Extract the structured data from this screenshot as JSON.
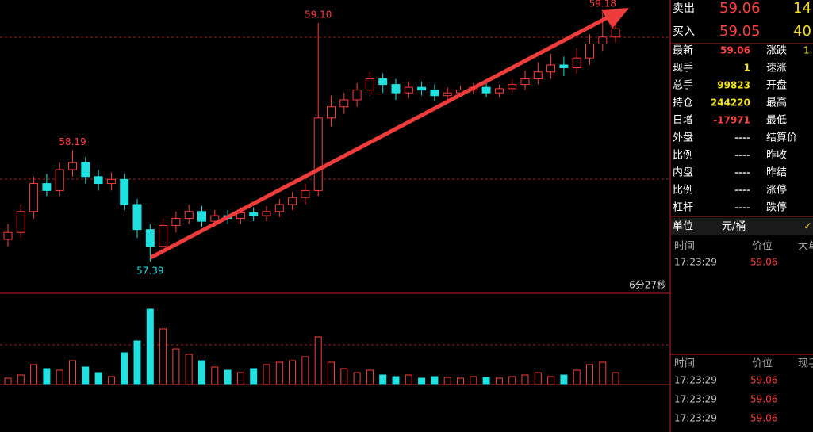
{
  "chart_data": {
    "type": "candlestick",
    "open": [
      57.55,
      57.6,
      57.75,
      57.95,
      57.9,
      58.05,
      58.1,
      58.0,
      57.95,
      57.98,
      57.8,
      57.62,
      57.5,
      57.65,
      57.7,
      57.75,
      57.68,
      57.72,
      57.7,
      57.74,
      57.72,
      57.75,
      57.8,
      57.85,
      57.9,
      58.42,
      58.5,
      58.55,
      58.62,
      58.7,
      58.66,
      58.6,
      58.64,
      58.62,
      58.58,
      58.6,
      58.62,
      58.64,
      58.6,
      58.63,
      58.66,
      58.7,
      58.75,
      58.8,
      58.78,
      58.85,
      58.95,
      59.0
    ],
    "high": [
      57.66,
      57.8,
      58.0,
      58.02,
      58.1,
      58.19,
      58.14,
      58.05,
      58.03,
      58.02,
      57.84,
      57.66,
      57.7,
      57.75,
      57.8,
      57.79,
      57.76,
      57.76,
      57.78,
      57.78,
      57.79,
      57.84,
      57.89,
      57.95,
      59.1,
      58.58,
      58.6,
      58.67,
      58.75,
      58.74,
      58.7,
      58.68,
      58.68,
      58.66,
      58.64,
      58.65,
      58.67,
      58.68,
      58.66,
      58.7,
      58.76,
      58.82,
      58.88,
      58.86,
      58.92,
      59.02,
      59.18,
      59.1
    ],
    "low": [
      57.5,
      57.56,
      57.7,
      57.86,
      57.86,
      58.0,
      57.95,
      57.9,
      57.9,
      57.76,
      57.56,
      57.39,
      57.46,
      57.6,
      57.66,
      57.64,
      57.64,
      57.66,
      57.66,
      57.68,
      57.68,
      57.71,
      57.76,
      57.8,
      57.86,
      58.36,
      58.45,
      58.5,
      58.58,
      58.6,
      58.55,
      58.56,
      58.58,
      58.54,
      58.55,
      58.57,
      58.59,
      58.57,
      58.57,
      58.6,
      58.62,
      58.66,
      58.7,
      58.72,
      58.74,
      58.8,
      58.9,
      58.96
    ],
    "close": [
      57.6,
      57.75,
      57.95,
      57.9,
      58.05,
      58.1,
      58.0,
      57.95,
      57.98,
      57.8,
      57.62,
      57.5,
      57.65,
      57.7,
      57.75,
      57.68,
      57.72,
      57.7,
      57.74,
      57.72,
      57.75,
      57.8,
      57.85,
      57.9,
      58.42,
      58.5,
      58.55,
      58.62,
      58.7,
      58.66,
      58.6,
      58.64,
      58.62,
      58.58,
      58.6,
      58.62,
      58.64,
      58.6,
      58.63,
      58.66,
      58.7,
      58.75,
      58.8,
      58.78,
      58.85,
      58.95,
      59.0,
      59.06
    ],
    "volume": [
      8,
      12,
      25,
      20,
      18,
      30,
      22,
      15,
      10,
      40,
      55,
      95,
      70,
      45,
      38,
      30,
      22,
      18,
      15,
      20,
      25,
      28,
      30,
      35,
      60,
      28,
      20,
      15,
      18,
      12,
      10,
      12,
      8,
      10,
      9,
      8,
      10,
      9,
      8,
      10,
      12,
      15,
      10,
      12,
      18,
      25,
      28,
      15
    ],
    "ylim": [
      57.3,
      59.26
    ],
    "volume_ylim": [
      0,
      100
    ],
    "up_color": "#ff3c3c",
    "down_color": "#20e0e0",
    "price_labels": [
      "59.10",
      "59.18",
      "58.19",
      "57.39"
    ],
    "countdown": "6分27秒"
  },
  "quote": {
    "ask": [
      "卖出",
      "59.06",
      "14"
    ],
    "bid": [
      "买入",
      "59.05",
      "40"
    ],
    "rows": [
      [
        "最新",
        "59.06",
        "涨跌",
        "1."
      ],
      [
        "现手",
        "1",
        "速涨"
      ],
      [
        "总手",
        "99823",
        "开盘"
      ],
      [
        "持仓",
        "244220",
        "最高"
      ],
      [
        "日增",
        "-17971",
        "最低"
      ],
      [
        "外盘",
        "----",
        "结算价"
      ],
      [
        "比例",
        "----",
        "昨收"
      ],
      [
        "内盘",
        "----",
        "昨结"
      ],
      [
        "比例",
        "----",
        "涨停"
      ],
      [
        "杠杆",
        "----",
        "跌停"
      ]
    ],
    "unit": [
      "单位",
      "元/桶"
    ],
    "ticks_top": {
      "headers": [
        "时间",
        "价位",
        "大单"
      ],
      "rows": [
        [
          "17:23:29",
          "59.06"
        ]
      ]
    },
    "ticks_bottom": {
      "headers": [
        "时间",
        "价位",
        "现手"
      ],
      "rows": [
        [
          "17:23:29",
          "59.06"
        ],
        [
          "17:23:29",
          "59.06"
        ],
        [
          "17:23:29",
          "59.06"
        ]
      ]
    }
  }
}
